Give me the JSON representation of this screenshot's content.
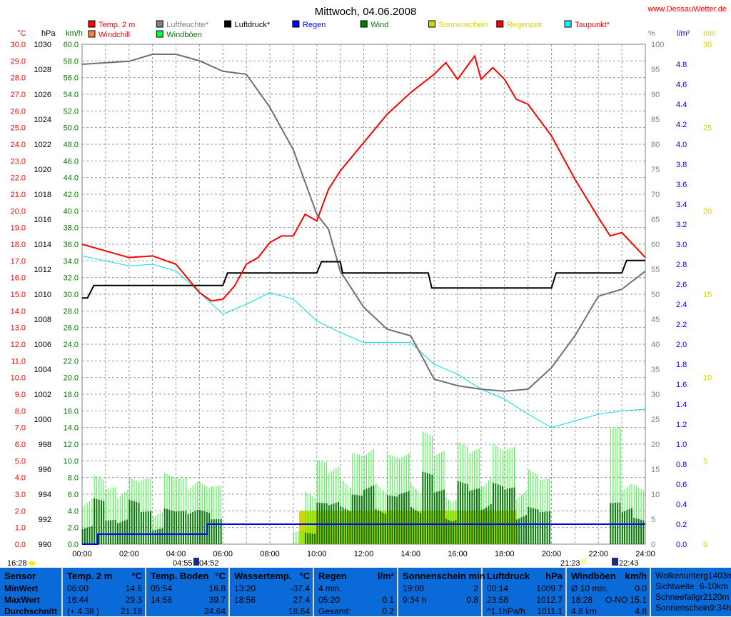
{
  "title": "Mittwoch, 04.06.2008",
  "site": "www.DessauWetter.de",
  "legend": [
    {
      "label": "Temp. 2 m",
      "color": "#ff0000",
      "text_color": "#ff0000"
    },
    {
      "label": "Luftfeuchte*",
      "color": "#808080",
      "text_color": "#808080"
    },
    {
      "label": "Luftdruck*",
      "color": "#000000",
      "text_color": "#000000"
    },
    {
      "label": "Regen",
      "color": "#0000ff",
      "text_color": "#0000ff"
    },
    {
      "label": "Wind",
      "color": "#007a00",
      "text_color": "#007a00"
    },
    {
      "label": "Sonnenschein",
      "color": "#d4d400",
      "text_color": "#d4d400"
    },
    {
      "label": "Regenzeit",
      "color": "#ff0000",
      "text_color": "#d4d400"
    },
    {
      "label": "Taupunkt*",
      "color": "#00ffff",
      "text_color": "#ff0000"
    },
    {
      "label": "Windchill",
      "color": "#ff8040",
      "text_color": "#ff0000"
    },
    {
      "label": "Windböen",
      "color": "#00ff40",
      "text_color": "#007a00"
    }
  ],
  "chart_data": {
    "type": "line",
    "title": "Mittwoch, 04.06.2008",
    "x_unit": "hours",
    "xlim": [
      0,
      24
    ],
    "x_ticks": [
      "00:00",
      "02:00",
      "04:00",
      "06:00",
      "08:00",
      "10:00",
      "12:00",
      "14:00",
      "16:00",
      "18:00",
      "20:00",
      "22:00",
      "24:00"
    ],
    "axes": {
      "temp": {
        "unit": "°C",
        "range": [
          0,
          30
        ],
        "step": 1,
        "color": "#ff0000"
      },
      "pressure": {
        "unit": "hPa",
        "range": [
          990,
          1030
        ],
        "step": 2,
        "color": "#000000"
      },
      "wind": {
        "unit": "km/h",
        "range": [
          0,
          60
        ],
        "step": 2,
        "color": "#007a00"
      },
      "humidity": {
        "unit": "%",
        "range": [
          0,
          100
        ],
        "step": 5,
        "color": "#808080"
      },
      "rain": {
        "unit": "l/m²",
        "range": [
          0,
          5
        ],
        "step": 0.2,
        "color": "#0000ff"
      },
      "sun": {
        "unit": "min",
        "range": [
          0,
          30
        ],
        "step": 5,
        "color": "#d4d400"
      }
    },
    "grid": true,
    "series": {
      "temp": {
        "name": "Temp. 2 m",
        "x": [
          0,
          1,
          2,
          3,
          4,
          5,
          5.5,
          6,
          6.5,
          7,
          7.5,
          8,
          8.5,
          9,
          9.5,
          10,
          10.5,
          11,
          12,
          13,
          14,
          15,
          15.5,
          16,
          16.73,
          17,
          17.5,
          18,
          18.5,
          19,
          20,
          21,
          22,
          22.5,
          23,
          24
        ],
        "y": [
          18.0,
          17.6,
          17.2,
          17.3,
          16.8,
          15.1,
          14.6,
          14.7,
          15.5,
          16.8,
          17.2,
          18.1,
          18.5,
          18.5,
          19.8,
          19.4,
          21.3,
          22.4,
          24.1,
          25.8,
          27.1,
          28.2,
          28.9,
          27.9,
          29.3,
          27.9,
          28.6,
          27.9,
          26.7,
          26.4,
          24.5,
          21.9,
          19.6,
          18.5,
          18.7,
          17.2
        ]
      },
      "humidity": {
        "name": "Luftfeuchte*",
        "x": [
          0,
          2,
          3,
          4,
          5,
          6,
          7,
          8,
          9,
          10,
          10.5,
          11,
          12,
          13,
          14,
          14.5,
          15,
          16,
          17,
          18,
          19,
          20,
          21,
          22,
          23,
          24
        ],
        "y": [
          96,
          96.6,
          98,
          98,
          96.7,
          94.6,
          94,
          87.4,
          78.9,
          66,
          63,
          54.6,
          47.4,
          43,
          41.7,
          37.4,
          33,
          31.7,
          31,
          30.6,
          31,
          35.3,
          41.7,
          49.6,
          51,
          54.6
        ]
      },
      "pressure": {
        "name": "Luftdruck*",
        "x": [
          0,
          0.23,
          0.5,
          6,
          6.2,
          10,
          10.2,
          11,
          11.1,
          14.75,
          14.9,
          20,
          20.2,
          23,
          23.2,
          24
        ],
        "y": [
          1009.7,
          1009.7,
          1010.7,
          1010.7,
          1011.7,
          1011.7,
          1012.6,
          1012.6,
          1011.7,
          1011.7,
          1010.5,
          1010.5,
          1011.7,
          1011.7,
          1012.7,
          1012.7
        ]
      },
      "dewpoint": {
        "name": "Taupunkt*",
        "x": [
          0,
          2,
          3,
          4,
          5,
          6,
          7,
          8,
          9,
          10,
          11,
          12,
          13,
          14,
          15,
          16,
          17,
          18,
          19,
          20,
          21,
          22,
          23,
          24
        ],
        "y": [
          17.3,
          16.7,
          16.8,
          16.4,
          15.1,
          13.8,
          14.4,
          15.1,
          14.7,
          13.4,
          12.7,
          12.1,
          12.1,
          12.1,
          10.8,
          10.2,
          9.3,
          8.7,
          7.8,
          7.0,
          7.4,
          7.8,
          8.0,
          8.1
        ]
      },
      "rain": {
        "name": "Regen",
        "x": [
          0,
          0.67,
          0.67,
          5.33,
          5.33,
          24
        ],
        "y": [
          0,
          0,
          0.1,
          0.1,
          0.2,
          0.2
        ]
      },
      "sunshine": {
        "name": "Sonnenschein",
        "start": 9.25,
        "end": 18.5,
        "value": 2
      },
      "wind": {
        "name": "Wind",
        "step_hours": 0.5,
        "values": [
          4,
          6,
          3,
          5,
          6,
          4,
          3,
          5,
          4,
          6,
          5,
          3,
          0,
          0,
          0,
          0,
          0,
          0,
          0,
          2,
          5,
          6,
          7,
          6,
          8,
          7,
          6,
          7,
          8,
          9,
          7,
          6,
          8,
          7,
          9,
          8,
          7,
          6,
          5,
          4,
          0,
          0,
          0,
          0,
          0,
          5,
          6,
          4
        ]
      },
      "gusts": {
        "name": "Windböen",
        "step_hours": 0.5,
        "values": [
          10,
          9,
          7,
          11,
          9,
          8,
          6,
          10,
          8,
          11,
          9,
          7,
          0,
          0,
          0,
          0,
          0,
          0,
          2,
          9,
          10,
          11,
          12,
          11,
          13,
          12,
          11,
          12,
          13,
          14,
          12,
          11,
          13,
          12,
          15,
          13,
          12,
          11,
          10,
          8,
          0,
          0,
          0,
          0,
          0,
          14,
          10,
          9
        ]
      }
    }
  },
  "astro": {
    "moonset": "16:28",
    "sunrise_dawn": "04:55",
    "sunrise": "04:52",
    "sunset": "21:23",
    "moonrise": "22:43"
  },
  "table": [
    {
      "header": [
        "Sensor",
        ""
      ],
      "rows": [
        [
          "MinWert",
          ""
        ],
        [
          "MaxWert",
          ""
        ],
        [
          "Durchschnitt",
          ""
        ]
      ]
    },
    {
      "header": [
        "Temp. 2 m",
        "°C"
      ],
      "rows": [
        [
          "06:00",
          "14.6"
        ],
        [
          "16:44",
          "29.3"
        ],
        [
          "(+ 4.38 )",
          "21.18"
        ]
      ]
    },
    {
      "header": [
        "Temp. Boden",
        "°C"
      ],
      "rows": [
        [
          "05:54",
          "16.8"
        ],
        [
          "14:58",
          "39.7"
        ],
        [
          "",
          "24.64"
        ]
      ]
    },
    {
      "header": [
        "Wassertemp.",
        "°C"
      ],
      "rows": [
        [
          "13:20",
          "-37.4"
        ],
        [
          "18:56",
          "27.4"
        ],
        [
          "",
          "18.64"
        ]
      ]
    },
    {
      "header": [
        "Regen",
        "l/m²"
      ],
      "rows": [
        [
          "4 min.",
          ""
        ],
        [
          "05:20",
          "0.1"
        ],
        [
          "Gesamt:",
          "0.2"
        ]
      ]
    },
    {
      "header": [
        "Sonnenschein min",
        ""
      ],
      "rows": [
        [
          "",
          ""
        ],
        [
          "19:00",
          "2"
        ],
        [
          "9:34 h",
          "0.8"
        ]
      ]
    },
    {
      "header": [
        "Luftdruck",
        "hPa"
      ],
      "rows": [
        [
          "00:14",
          "1009.7"
        ],
        [
          "23:58",
          "1012.7"
        ],
        [
          "^1.1hPa/h",
          "1011.1"
        ]
      ]
    },
    {
      "header": [
        "Windböen",
        "km/h"
      ],
      "rows": [
        [
          "Ø 10 min.",
          "0.0"
        ],
        [
          "18:28",
          "O-NO 15.1"
        ],
        [
          "4.8 km",
          "4.8"
        ]
      ]
    },
    {
      "header": [
        "",
        ""
      ],
      "rows": [
        [
          "Wolkenunterg",
          "1403m"
        ],
        [
          "Sichtweite",
          "6-10km"
        ],
        [
          "Schneefallgr",
          "2120m"
        ],
        [
          "Sonnenschein",
          "9:34h"
        ]
      ]
    }
  ]
}
